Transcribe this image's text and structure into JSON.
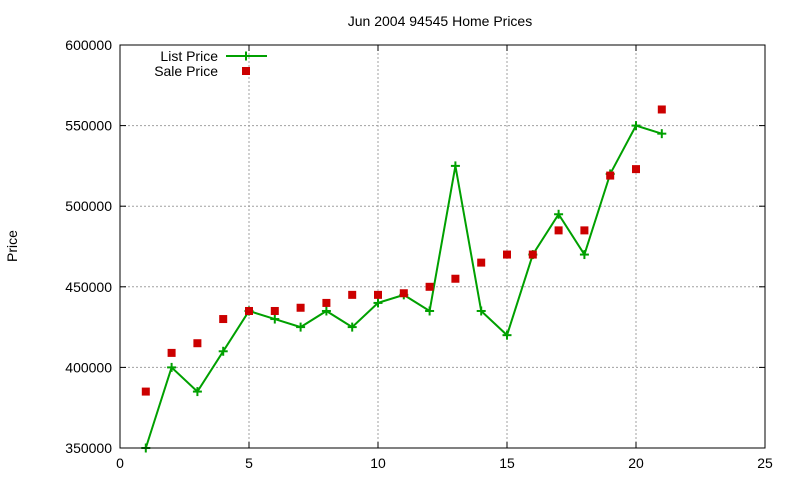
{
  "chart_data": {
    "type": "line",
    "title": "Jun 2004 94545 Home Prices",
    "xlabel": "",
    "ylabel": "Price",
    "xlim": [
      0,
      25
    ],
    "ylim": [
      350000,
      600000
    ],
    "x_ticks": [
      0,
      5,
      10,
      15,
      20,
      25
    ],
    "y_ticks": [
      350000,
      400000,
      450000,
      500000,
      550000,
      600000
    ],
    "grid": true,
    "legend_position": "top-left",
    "series": [
      {
        "name": "List Price",
        "style": "line+cross",
        "color": "#00a000",
        "x": [
          1,
          2,
          3,
          4,
          5,
          6,
          7,
          8,
          9,
          10,
          11,
          12,
          13,
          14,
          15,
          16,
          17,
          18,
          19,
          20,
          21
        ],
        "values": [
          350000,
          400000,
          385000,
          410000,
          435000,
          430000,
          425000,
          435000,
          425000,
          440000,
          445000,
          435000,
          525000,
          435000,
          420000,
          470000,
          495000,
          470000,
          520000,
          550000,
          545000
        ]
      },
      {
        "name": "Sale Price",
        "style": "square",
        "color": "#cc0000",
        "x": [
          1,
          2,
          3,
          4,
          5,
          6,
          7,
          8,
          9,
          10,
          11,
          12,
          13,
          14,
          15,
          16,
          17,
          18,
          19,
          20,
          21
        ],
        "values": [
          385000,
          409000,
          415000,
          430000,
          435000,
          435000,
          437000,
          440000,
          445000,
          445000,
          446000,
          450000,
          455000,
          465000,
          470000,
          470000,
          485000,
          485000,
          519000,
          523000,
          560000
        ]
      }
    ]
  }
}
